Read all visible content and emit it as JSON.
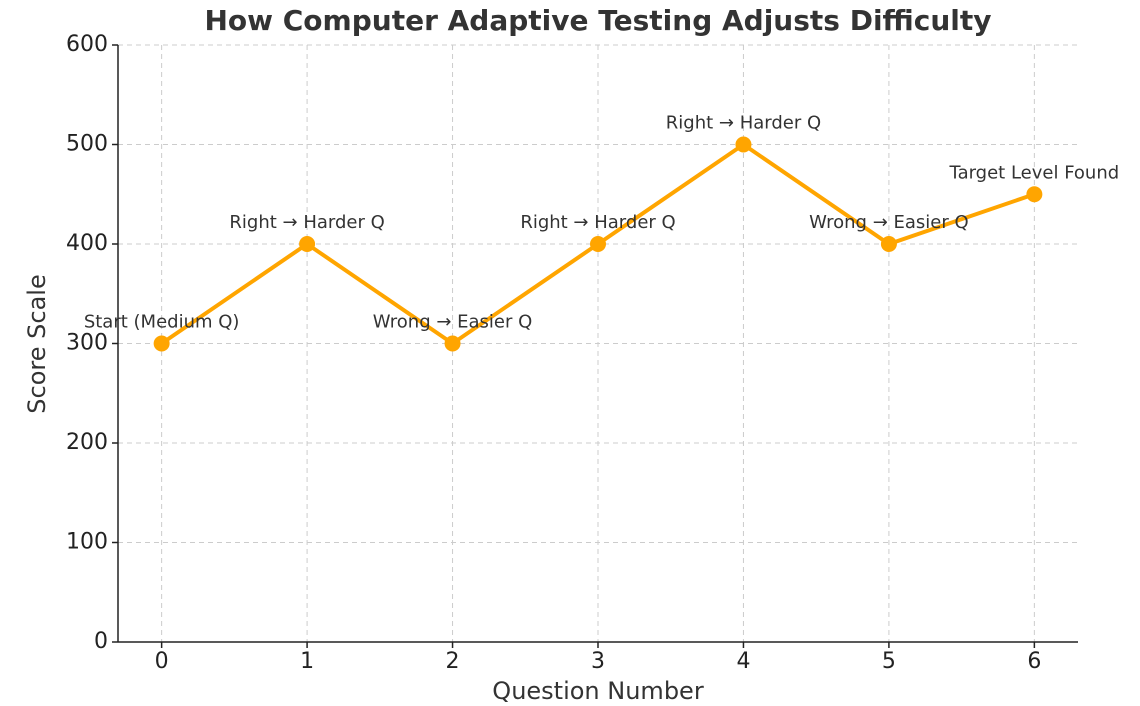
{
  "chart_data": {
    "type": "line",
    "title": "How Computer Adaptive Testing Adjusts Difficulty",
    "xlabel": "Question Number",
    "ylabel": "Score Scale",
    "x": [
      0,
      1,
      2,
      3,
      4,
      5,
      6
    ],
    "values": [
      300,
      400,
      300,
      400,
      500,
      400,
      450
    ],
    "annotations": [
      "Start (Medium Q)",
      "Right → Harder Q",
      "Wrong → Easier Q",
      "Right → Harder Q",
      "Right → Harder Q",
      "Wrong → Easier Q",
      "Target Level Found"
    ],
    "color": "#ffa500",
    "xlim": [
      -0.3,
      6.3
    ],
    "xticks": [
      0,
      1,
      2,
      3,
      4,
      5,
      6
    ],
    "ylim": [
      0,
      600
    ],
    "yticks": [
      0,
      100,
      200,
      300,
      400,
      500,
      600
    ],
    "grid": true
  }
}
